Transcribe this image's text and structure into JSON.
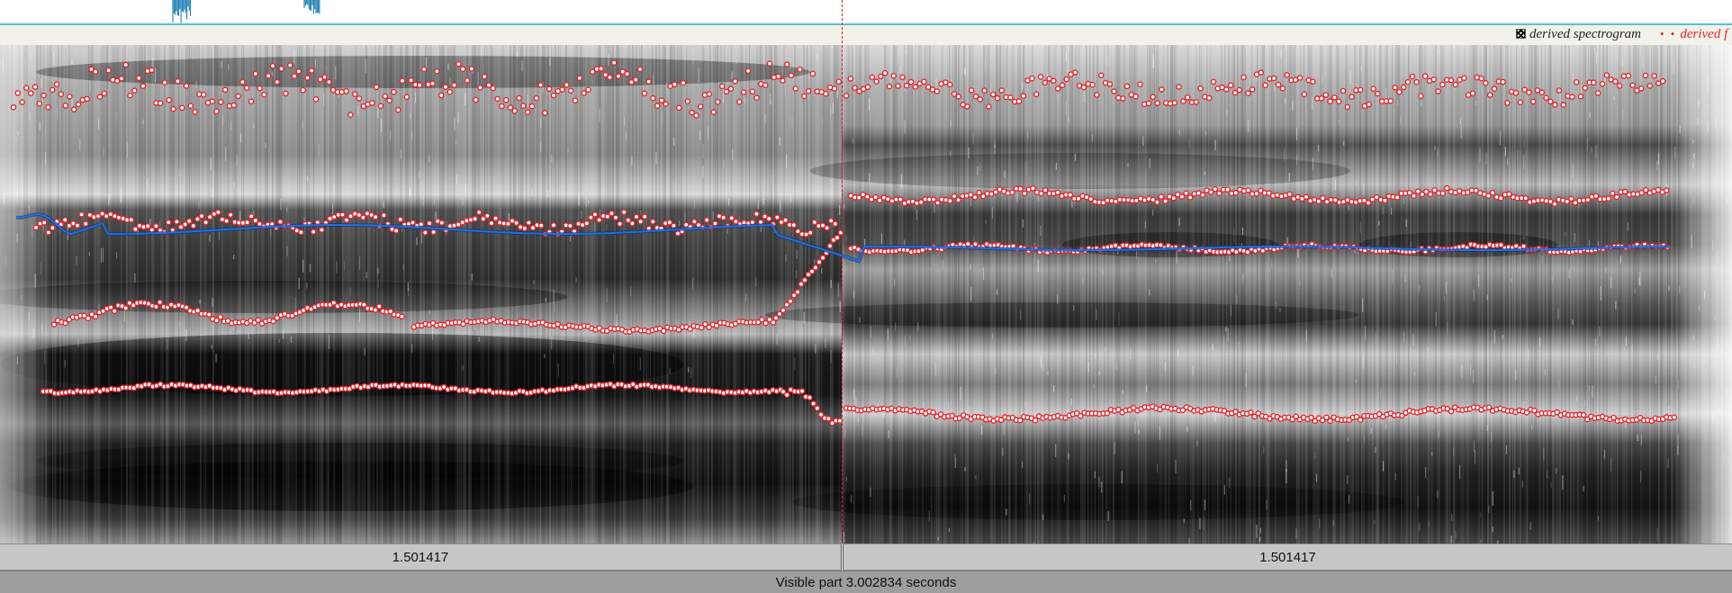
{
  "legend": {
    "spectrogram_label": "derived spectrogram",
    "formant_label": "derived f",
    "formant_marker": "• •",
    "formant_color": "#e3252b"
  },
  "colors": {
    "waveform": "#1a7fb5",
    "waveform_border": "#4fc3d9",
    "cursor": "#d3231f",
    "pitch_line": "#1f6fe0",
    "formant_dot": "#e3252b"
  },
  "selection": {
    "left_duration": "1.501417",
    "right_duration": "1.501417"
  },
  "visible_part": {
    "label": "Visible part 3.002834 seconds"
  }
}
